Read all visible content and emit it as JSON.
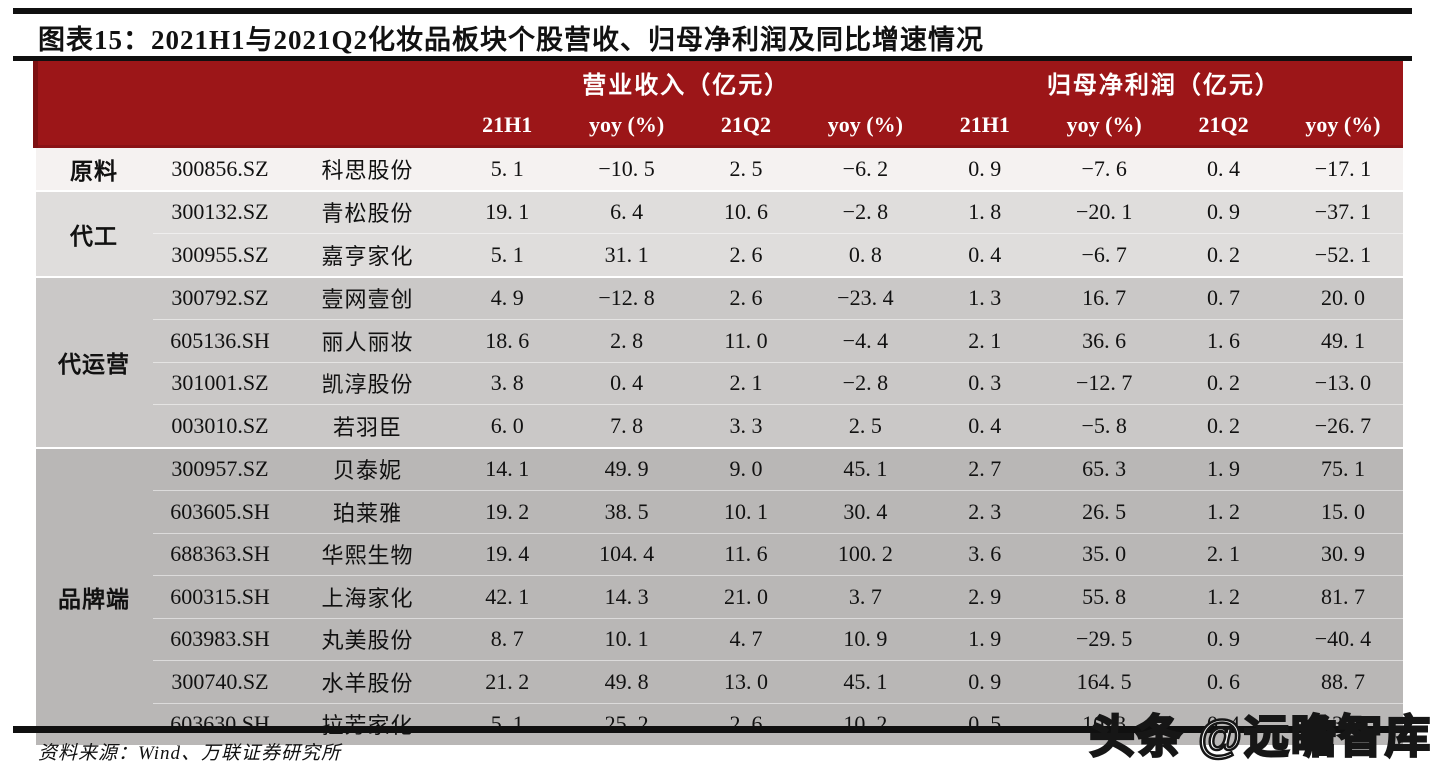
{
  "page": {
    "title": "图表15：2021H1与2021Q2化妆品板块个股营收、归母净利润及同比增速情况",
    "source_note": "资料来源：Wind、万联证券研究所",
    "watermark": "头条 @远瞻智库"
  },
  "colors": {
    "header_bg": "#9c1618",
    "header_accent": "#7d1012",
    "rule": "#101010"
  },
  "table": {
    "col_groups": [
      {
        "label": "营业收入（亿元）"
      },
      {
        "label": "归母净利润（亿元）"
      }
    ],
    "sub_headers": [
      "21H1",
      "yoy (%)",
      "21Q2",
      "yoy (%)",
      "21H1",
      "yoy (%)",
      "21Q2",
      "yoy (%)"
    ],
    "groups": [
      {
        "name": "原料",
        "band_color": "#f5f2f1",
        "rows": [
          {
            "code": "300856.SZ",
            "company": "科思股份",
            "values": [
              "5.1",
              "-10.5",
              "2.5",
              "-6.2",
              "0.9",
              "-7.6",
              "0.4",
              "-17.1"
            ]
          }
        ]
      },
      {
        "name": "代工",
        "band_color": "#dfdddc",
        "rows": [
          {
            "code": "300132.SZ",
            "company": "青松股份",
            "values": [
              "19.1",
              "6.4",
              "10.6",
              "-2.8",
              "1.8",
              "-20.1",
              "0.9",
              "-37.1"
            ]
          },
          {
            "code": "300955.SZ",
            "company": "嘉亨家化",
            "values": [
              "5.1",
              "31.1",
              "2.6",
              "0.8",
              "0.4",
              "-6.7",
              "0.2",
              "-52.1"
            ]
          }
        ]
      },
      {
        "name": "代运营",
        "band_color": "#cac8c7",
        "rows": [
          {
            "code": "300792.SZ",
            "company": "壹网壹创",
            "values": [
              "4.9",
              "-12.8",
              "2.6",
              "-23.4",
              "1.3",
              "16.7",
              "0.7",
              "20.0"
            ]
          },
          {
            "code": "605136.SH",
            "company": "丽人丽妆",
            "values": [
              "18.6",
              "2.8",
              "11.0",
              "-4.4",
              "2.1",
              "36.6",
              "1.6",
              "49.1"
            ]
          },
          {
            "code": "301001.SZ",
            "company": "凯淳股份",
            "values": [
              "3.8",
              "0.4",
              "2.1",
              "-2.8",
              "0.3",
              "-12.7",
              "0.2",
              "-13.0"
            ]
          },
          {
            "code": "003010.SZ",
            "company": "若羽臣",
            "values": [
              "6.0",
              "7.8",
              "3.3",
              "2.5",
              "0.4",
              "-5.8",
              "0.2",
              "-26.7"
            ]
          }
        ]
      },
      {
        "name": "品牌端",
        "band_color": "#b9b7b6",
        "rows": [
          {
            "code": "300957.SZ",
            "company": "贝泰妮",
            "values": [
              "14.1",
              "49.9",
              "9.0",
              "45.1",
              "2.7",
              "65.3",
              "1.9",
              "75.1"
            ]
          },
          {
            "code": "603605.SH",
            "company": "珀莱雅",
            "values": [
              "19.2",
              "38.5",
              "10.1",
              "30.4",
              "2.3",
              "26.5",
              "1.2",
              "15.0"
            ]
          },
          {
            "code": "688363.SH",
            "company": "华熙生物",
            "values": [
              "19.4",
              "104.4",
              "11.6",
              "100.2",
              "3.6",
              "35.0",
              "2.1",
              "30.9"
            ]
          },
          {
            "code": "600315.SH",
            "company": "上海家化",
            "values": [
              "42.1",
              "14.3",
              "21.0",
              "3.7",
              "2.9",
              "55.8",
              "1.2",
              "81.7"
            ]
          },
          {
            "code": "603983.SH",
            "company": "丸美股份",
            "values": [
              "8.7",
              "10.1",
              "4.7",
              "10.9",
              "1.9",
              "-29.5",
              "0.9",
              "-40.4"
            ]
          },
          {
            "code": "300740.SZ",
            "company": "水羊股份",
            "values": [
              "21.2",
              "49.8",
              "13.0",
              "45.1",
              "0.9",
              "164.5",
              "0.6",
              "88.7"
            ]
          },
          {
            "code": "603630.SH",
            "company": "拉芳家化",
            "values": [
              "5.1",
              "25.2",
              "2.6",
              "10.2",
              "0.5",
              "10.3",
              "0.4",
              "13.5"
            ]
          }
        ]
      }
    ]
  }
}
